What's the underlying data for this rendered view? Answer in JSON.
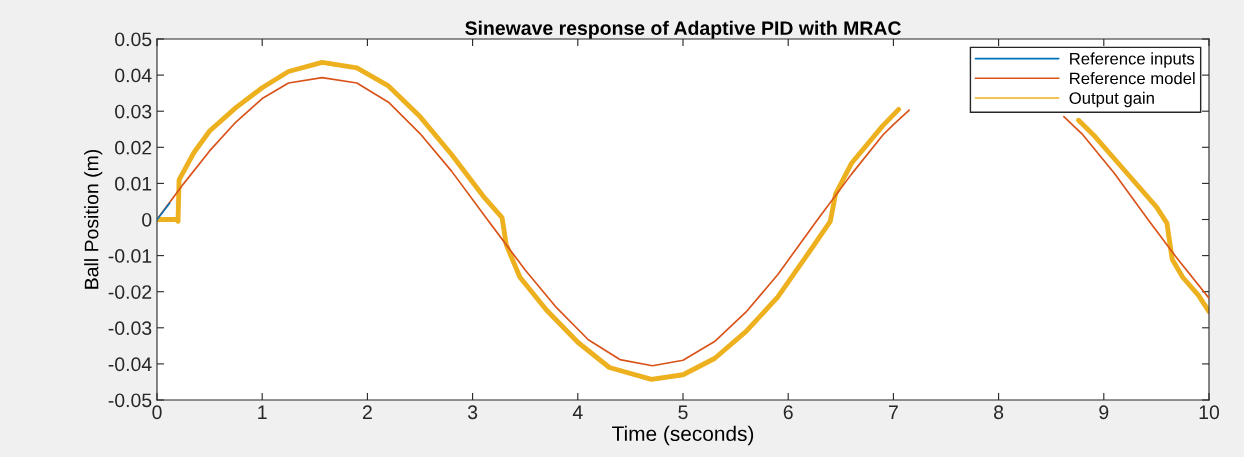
{
  "chart_data": {
    "type": "line",
    "title": "Sinewave response of Adaptive PID with MRAC",
    "xlabel": "Time (seconds)",
    "ylabel": "Ball Position (m)",
    "xlim": [
      0,
      10
    ],
    "xticks": [
      0,
      1,
      2,
      3,
      4,
      5,
      6,
      7,
      8,
      9,
      10
    ],
    "ylim": [
      -0.05,
      0.05
    ],
    "yticks": [
      -0.05,
      -0.04,
      -0.03,
      -0.02,
      -0.01,
      0,
      0.01,
      0.02,
      0.03,
      0.04,
      0.05
    ],
    "grid": false,
    "legend": "top right",
    "marker": "none",
    "line_style": "solid",
    "series": [
      {
        "name": "Reference inputs",
        "color": "#0072bd",
        "x": [
          0,
          0.12
        ],
        "values": [
          0,
          0.0045
        ]
      },
      {
        "name": "Reference model",
        "color": "#d95319",
        "x": [
          0,
          0.25,
          0.5,
          0.75,
          1,
          1.25,
          1.57,
          1.9,
          2.2,
          2.5,
          2.8,
          3.14,
          3.5,
          3.8,
          4.1,
          4.4,
          4.71,
          5.0,
          5.3,
          5.6,
          5.9,
          6.28,
          6.6,
          6.9,
          7.0,
          7.15,
          7.85,
          8.62,
          8.8,
          9.1,
          9.42,
          9.7,
          10
        ],
        "values": [
          0,
          0.0098,
          0.019,
          0.027,
          0.0335,
          0.0378,
          0.0393,
          0.0378,
          0.0325,
          0.0238,
          0.0134,
          0,
          -0.014,
          -0.0245,
          -0.0333,
          -0.0388,
          -0.0405,
          -0.039,
          -0.0338,
          -0.0256,
          -0.0153,
          0,
          0.0125,
          0.0234,
          0.0263,
          0.0303,
          null,
          0.0285,
          0.0235,
          0.0128,
          0,
          -0.0109,
          -0.0218
        ]
      },
      {
        "name": "Output gain",
        "color": "#edb120",
        "x": [
          0,
          0.19,
          0.2,
          0.21,
          0.35,
          0.5,
          0.75,
          1,
          1.25,
          1.57,
          1.9,
          2.2,
          2.5,
          2.8,
          3.1,
          3.28,
          3.32,
          3.45,
          3.7,
          4.0,
          4.3,
          4.7,
          5.0,
          5.3,
          5.6,
          5.9,
          6.2,
          6.4,
          6.45,
          6.6,
          6.9,
          7.05,
          7.85,
          8.76,
          8.9,
          9.2,
          9.5,
          9.6,
          9.65,
          9.75,
          9.9,
          10
        ],
        "values": [
          0,
          0,
          -0.0005,
          0.011,
          0.0185,
          0.0245,
          0.031,
          0.0365,
          0.041,
          0.0435,
          0.042,
          0.037,
          0.0285,
          0.018,
          0.0065,
          0.0005,
          -0.007,
          -0.016,
          -0.025,
          -0.034,
          -0.041,
          -0.0443,
          -0.043,
          -0.0385,
          -0.031,
          -0.0215,
          -0.009,
          -0.0005,
          0.007,
          0.0155,
          0.026,
          0.0305,
          null,
          0.0275,
          0.0235,
          0.0135,
          0.0035,
          -0.001,
          -0.011,
          -0.016,
          -0.021,
          -0.0255
        ]
      }
    ]
  }
}
